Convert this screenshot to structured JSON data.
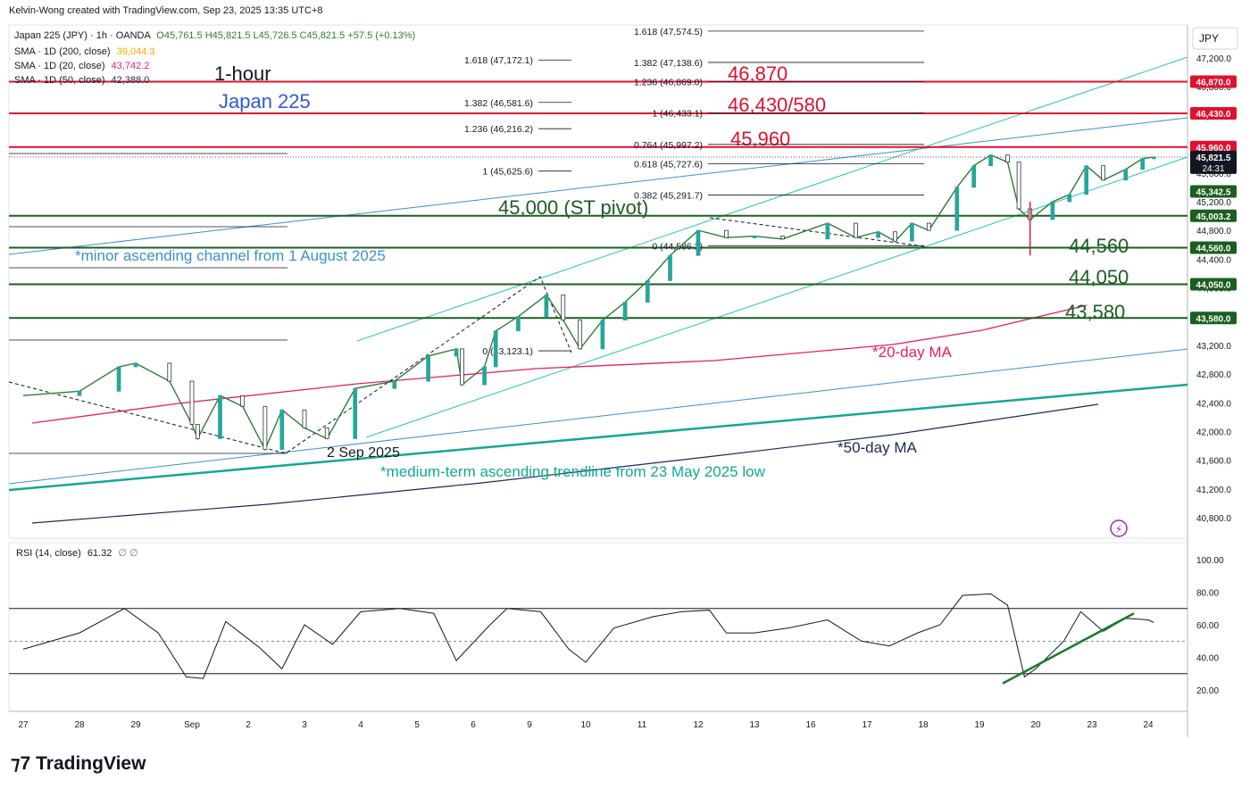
{
  "header": {
    "credit": "Kelvin-Wong created with TradingView.com, Sep 23, 2025 13:35 UTC+8",
    "symbol_line": "Japan 225 (JPY) · 1h · OANDA",
    "ohlc": "O45,761.5 H45,821.5 L45,726.5 C45,821.5 +57.5 (+0.13%)",
    "currency": "JPY"
  },
  "legend": [
    {
      "label": "SMA · 1D (200, close)",
      "value": "39,044.3",
      "color": "#f2a900"
    },
    {
      "label": "SMA · 1D (20, close)",
      "value": "43,742.2",
      "color": "#e91e63"
    },
    {
      "label": "SMA · 1D (50, close)",
      "value": "42,388.0",
      "color": "#1a2a57"
    }
  ],
  "rsi_legend": {
    "label": "RSI (14, close)",
    "value": "61.32",
    "extra": "∅ ∅"
  },
  "brand": {
    "logo_text": "TradingView"
  },
  "colors": {
    "resistance": "#e0102e",
    "support": "#1b5e20",
    "channel": "#26c6a8",
    "trendline": "#12a894",
    "ma20": "#e91e63",
    "ma50": "#1a2a57",
    "blue_line": "#3a8fd0",
    "candle": "#2e7d32"
  },
  "chart_data": {
    "type": "candlestick",
    "title": "Japan 225",
    "subtitle": "1-hour",
    "y_axis_ticks": [
      "47,200.0",
      "46,800.0",
      "46,400.0",
      "46,000.0",
      "45,600.0",
      "45,200.0",
      "44,800.0",
      "44,400.0",
      "44,000.0",
      "43,600.0",
      "43,200.0",
      "42,800.0",
      "42,400.0",
      "42,000.0",
      "41,600.0",
      "41,200.0",
      "40,800.0"
    ],
    "x_axis_ticks": [
      "27",
      "28",
      "29",
      "Sep",
      "2",
      "3",
      "4",
      "5",
      "6",
      "9",
      "10",
      "11",
      "12",
      "13",
      "16",
      "17",
      "18",
      "19",
      "20",
      "23",
      "24"
    ],
    "price_tags": [
      {
        "text": "46,870.0",
        "value": 46870,
        "color": "#e0102e"
      },
      {
        "text": "46,430.0",
        "value": 46430,
        "color": "#e0102e"
      },
      {
        "text": "45,960.0",
        "value": 45960,
        "color": "#e0102e"
      },
      {
        "text": "45,821.5",
        "value": 45821.5,
        "color": "#131722",
        "extra": "24:31"
      },
      {
        "text": "45,342.5",
        "value": 45342.5,
        "color": "#1b5e20"
      },
      {
        "text": "45,003.2",
        "value": 45003.2,
        "color": "#1b5e20"
      },
      {
        "text": "44,560.0",
        "value": 44560,
        "color": "#1b5e20"
      },
      {
        "text": "44,050.0",
        "value": 44050,
        "color": "#1b5e20"
      },
      {
        "text": "43,580.0",
        "value": 43580,
        "color": "#1b5e20"
      }
    ],
    "horizontal_levels": [
      {
        "value": 46870,
        "label": "46,870",
        "color": "#e0102e"
      },
      {
        "value": 46430,
        "label": "46,430/580",
        "color": "#e0102e"
      },
      {
        "value": 45960,
        "label": "45,960",
        "color": "#e0102e"
      },
      {
        "value": 45003.2,
        "label": "45,000 (ST pivot)",
        "color": "#1b5e20"
      },
      {
        "value": 44560,
        "label": "44,560",
        "color": "#1b5e20"
      },
      {
        "value": 44050,
        "label": "44,050",
        "color": "#1b5e20"
      },
      {
        "value": 43580,
        "label": "43,580",
        "color": "#1b5e20"
      }
    ],
    "fib_left": [
      {
        "label": "1.618 (47,172.1)",
        "value": 47172.1
      },
      {
        "label": "1.382 (46,581.6)",
        "value": 46581.6
      },
      {
        "label": "1.236 (46,216.2)",
        "value": 46216.2
      },
      {
        "label": "1 (45,625.6)",
        "value": 45625.6
      },
      {
        "label": "0 (43,123.1)",
        "value": 43123.1
      }
    ],
    "fib_right": [
      {
        "label": "1.618 (47,574.5)",
        "value": 47574.5
      },
      {
        "label": "1.382 (47,138.6)",
        "value": 47138.6
      },
      {
        "label": "1.236 (46,869.0)",
        "value": 46869.0
      },
      {
        "label": "1 (46,433.1)",
        "value": 46433.1
      },
      {
        "label": "0.764 (45,997.2)",
        "value": 45997.2
      },
      {
        "label": "0.618 (45,727.6)",
        "value": 45727.6
      },
      {
        "label": "0.382 (45,291.7)",
        "value": 45291.7
      },
      {
        "label": "0 (44,586.2)",
        "value": 44586.2
      }
    ],
    "annotations": [
      {
        "text": "*minor ascending channel from 1 August 2025",
        "color": "#3a8fd0"
      },
      {
        "text": "*medium-term ascending trendline from 23 May 2025 low",
        "color": "#12a894"
      },
      {
        "text": "*20-day MA",
        "color": "#e91e63"
      },
      {
        "text": "*50-day MA",
        "color": "#1a2a57"
      },
      {
        "text": "2 Sep 2025",
        "color": "#131722"
      }
    ],
    "price_path": [
      {
        "x": 0,
        "y": 42500
      },
      {
        "x": 1.0,
        "y": 42560
      },
      {
        "x": 1.7,
        "y": 42900
      },
      {
        "x": 2.0,
        "y": 42950
      },
      {
        "x": 2.6,
        "y": 42700
      },
      {
        "x": 3.0,
        "y": 42100
      },
      {
        "x": 3.1,
        "y": 41900
      },
      {
        "x": 3.5,
        "y": 42500
      },
      {
        "x": 3.9,
        "y": 42350
      },
      {
        "x": 4.3,
        "y": 41750
      },
      {
        "x": 4.6,
        "y": 42300
      },
      {
        "x": 5.0,
        "y": 42050
      },
      {
        "x": 5.4,
        "y": 41900
      },
      {
        "x": 5.9,
        "y": 42600
      },
      {
        "x": 6.6,
        "y": 42700
      },
      {
        "x": 7.2,
        "y": 43050
      },
      {
        "x": 7.7,
        "y": 43150
      },
      {
        "x": 7.8,
        "y": 42650
      },
      {
        "x": 8.2,
        "y": 42900
      },
      {
        "x": 8.4,
        "y": 43400
      },
      {
        "x": 8.8,
        "y": 43600
      },
      {
        "x": 9.3,
        "y": 43900
      },
      {
        "x": 9.6,
        "y": 43550
      },
      {
        "x": 9.9,
        "y": 43150
      },
      {
        "x": 10.3,
        "y": 43550
      },
      {
        "x": 10.7,
        "y": 43800
      },
      {
        "x": 11.1,
        "y": 44100
      },
      {
        "x": 11.5,
        "y": 44450
      },
      {
        "x": 12.0,
        "y": 44800
      },
      {
        "x": 12.5,
        "y": 44700
      },
      {
        "x": 13.0,
        "y": 44720
      },
      {
        "x": 13.5,
        "y": 44680
      },
      {
        "x": 14.3,
        "y": 44900
      },
      {
        "x": 14.8,
        "y": 44700
      },
      {
        "x": 15.2,
        "y": 44780
      },
      {
        "x": 15.5,
        "y": 44650
      },
      {
        "x": 15.8,
        "y": 44900
      },
      {
        "x": 16.1,
        "y": 44800
      },
      {
        "x": 16.6,
        "y": 45400
      },
      {
        "x": 16.9,
        "y": 45700
      },
      {
        "x": 17.2,
        "y": 45850
      },
      {
        "x": 17.5,
        "y": 45750
      },
      {
        "x": 17.7,
        "y": 45100
      },
      {
        "x": 17.9,
        "y": 44950
      },
      {
        "x": 18.3,
        "y": 45200
      },
      {
        "x": 18.6,
        "y": 45300
      },
      {
        "x": 18.9,
        "y": 45700
      },
      {
        "x": 19.2,
        "y": 45500
      },
      {
        "x": 19.6,
        "y": 45650
      },
      {
        "x": 19.9,
        "y": 45800
      },
      {
        "x": 20.1,
        "y": 45821.5
      }
    ],
    "rsi": {
      "name": "RSI (14, close)",
      "ticks": [
        "100.00",
        "80.00",
        "60.00",
        "40.00",
        "20.00"
      ],
      "levels": [
        70,
        50,
        30
      ],
      "last": 61.32,
      "values": [
        {
          "x": 0,
          "y": 45
        },
        {
          "x": 1.0,
          "y": 55
        },
        {
          "x": 1.8,
          "y": 70
        },
        {
          "x": 2.4,
          "y": 55
        },
        {
          "x": 2.9,
          "y": 28
        },
        {
          "x": 3.2,
          "y": 27
        },
        {
          "x": 3.6,
          "y": 62
        },
        {
          "x": 4.2,
          "y": 46
        },
        {
          "x": 4.6,
          "y": 33
        },
        {
          "x": 5.0,
          "y": 60
        },
        {
          "x": 5.5,
          "y": 48
        },
        {
          "x": 6.0,
          "y": 68
        },
        {
          "x": 6.7,
          "y": 70
        },
        {
          "x": 7.3,
          "y": 67
        },
        {
          "x": 7.7,
          "y": 38
        },
        {
          "x": 8.3,
          "y": 60
        },
        {
          "x": 8.6,
          "y": 70
        },
        {
          "x": 9.2,
          "y": 68
        },
        {
          "x": 9.7,
          "y": 45
        },
        {
          "x": 10.0,
          "y": 37
        },
        {
          "x": 10.5,
          "y": 58
        },
        {
          "x": 11.2,
          "y": 65
        },
        {
          "x": 11.7,
          "y": 68
        },
        {
          "x": 12.2,
          "y": 69
        },
        {
          "x": 12.5,
          "y": 55
        },
        {
          "x": 13.0,
          "y": 55
        },
        {
          "x": 13.6,
          "y": 58
        },
        {
          "x": 14.3,
          "y": 63
        },
        {
          "x": 14.9,
          "y": 50
        },
        {
          "x": 15.4,
          "y": 47
        },
        {
          "x": 15.9,
          "y": 55
        },
        {
          "x": 16.3,
          "y": 60
        },
        {
          "x": 16.7,
          "y": 78
        },
        {
          "x": 17.2,
          "y": 79
        },
        {
          "x": 17.5,
          "y": 72
        },
        {
          "x": 17.8,
          "y": 28
        },
        {
          "x": 18.0,
          "y": 33
        },
        {
          "x": 18.5,
          "y": 50
        },
        {
          "x": 18.8,
          "y": 68
        },
        {
          "x": 19.2,
          "y": 56
        },
        {
          "x": 19.6,
          "y": 64
        },
        {
          "x": 20.0,
          "y": 63
        },
        {
          "x": 20.1,
          "y": 61.32
        }
      ]
    }
  }
}
